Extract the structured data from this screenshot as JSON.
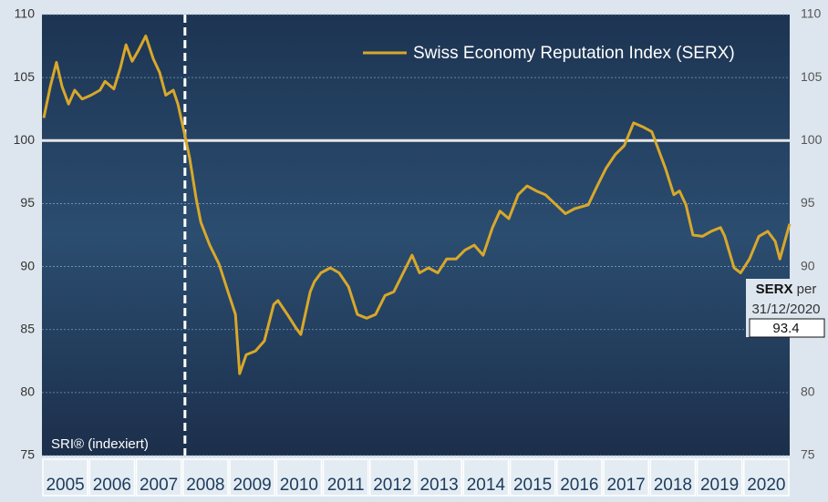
{
  "chart_data": {
    "type": "line",
    "legend_label": "Swiss Economy Reputation Index (SERX)",
    "axis_note": "SRI® (indexiert)",
    "categories": [
      "2005",
      "2006",
      "2007",
      "2008",
      "2009",
      "2010",
      "2011",
      "2012",
      "2013",
      "2014",
      "2015",
      "2016",
      "2017",
      "2018",
      "2019",
      "2020"
    ],
    "xlim": [
      2005,
      2021
    ],
    "ylim": [
      75,
      110
    ],
    "yticks": [
      75,
      80,
      85,
      90,
      95,
      100,
      105,
      110
    ],
    "grid": true,
    "reference_lines": {
      "y": 100,
      "x": 2008.06
    },
    "annotation": {
      "label": "SERX",
      "text": "per",
      "date": "31/12/2020",
      "value": 93.4
    },
    "series": [
      {
        "name": "Swiss Economy Reputation Index (SERX)",
        "color": "#d8a82a",
        "x": [
          2005.04,
          2005.18,
          2005.31,
          2005.43,
          2005.57,
          2005.7,
          2005.86,
          2006.05,
          2006.24,
          2006.35,
          2006.54,
          2006.68,
          2006.8,
          2006.93,
          2007.07,
          2007.22,
          2007.38,
          2007.52,
          2007.65,
          2007.81,
          2007.91,
          2008.06,
          2008.16,
          2008.3,
          2008.4,
          2008.59,
          2008.79,
          2008.98,
          2009.14,
          2009.23,
          2009.37,
          2009.57,
          2009.76,
          2009.96,
          2010.05,
          2010.25,
          2010.44,
          2010.54,
          2010.74,
          2010.83,
          2010.97,
          2011.17,
          2011.36,
          2011.56,
          2011.75,
          2011.95,
          2012.14,
          2012.34,
          2012.53,
          2012.73,
          2012.92,
          2013.08,
          2013.27,
          2013.47,
          2013.66,
          2013.86,
          2014.05,
          2014.25,
          2014.44,
          2014.64,
          2014.8,
          2014.99,
          2015.19,
          2015.38,
          2015.58,
          2015.77,
          2016.0,
          2016.2,
          2016.4,
          2016.69,
          2016.88,
          2017.07,
          2017.27,
          2017.46,
          2017.66,
          2017.85,
          2018.05,
          2018.19,
          2018.34,
          2018.52,
          2018.64,
          2018.78,
          2018.93,
          2019.13,
          2019.32,
          2019.52,
          2019.61,
          2019.81,
          2019.95,
          2020.14,
          2020.34,
          2020.53,
          2020.69,
          2020.79,
          2021.0
        ],
        "values": [
          101.8,
          104.3,
          106.2,
          104.3,
          102.9,
          104.0,
          103.3,
          103.6,
          104.0,
          104.7,
          104.1,
          105.8,
          107.6,
          106.3,
          107.2,
          108.3,
          106.5,
          105.4,
          103.6,
          104.0,
          102.9,
          100.4,
          98.6,
          95.4,
          93.5,
          91.7,
          90.2,
          88.0,
          86.2,
          81.5,
          83.0,
          83.3,
          84.1,
          87.0,
          87.3,
          86.2,
          85.1,
          84.6,
          88.0,
          88.8,
          89.5,
          89.9,
          89.5,
          88.4,
          86.2,
          85.9,
          86.2,
          87.7,
          88.0,
          89.5,
          90.9,
          89.5,
          89.9,
          89.5,
          90.6,
          90.6,
          91.3,
          91.7,
          90.9,
          93.1,
          94.4,
          93.8,
          95.7,
          96.4,
          96.0,
          95.7,
          94.9,
          94.2,
          94.6,
          94.9,
          96.4,
          97.8,
          98.9,
          99.6,
          101.4,
          101.1,
          100.7,
          99.3,
          97.8,
          95.7,
          96.0,
          94.9,
          92.5,
          92.4,
          92.8,
          93.1,
          92.4,
          89.9,
          89.5,
          90.6,
          92.4,
          92.8,
          92.0,
          90.6,
          93.4
        ]
      }
    ]
  }
}
